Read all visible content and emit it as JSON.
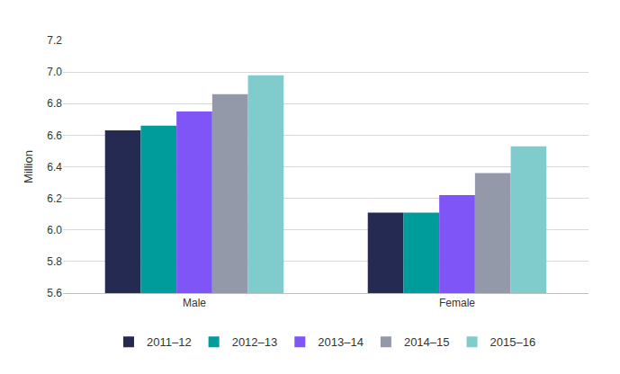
{
  "chart_data": {
    "type": "bar",
    "y_label": "Million",
    "categories": [
      "Male",
      "Female"
    ],
    "series": [
      {
        "name": "2011–12",
        "color": "#252a52",
        "values": [
          6.63,
          6.11
        ]
      },
      {
        "name": "2012–13",
        "color": "#009b9b",
        "values": [
          6.66,
          6.11
        ]
      },
      {
        "name": "2013–14",
        "color": "#8055f7",
        "values": [
          6.75,
          6.22
        ]
      },
      {
        "name": "2014–15",
        "color": "#9499aa",
        "values": [
          6.86,
          6.36
        ]
      },
      {
        "name": "2015–16",
        "color": "#80cccc",
        "values": [
          6.98,
          6.53
        ]
      }
    ],
    "ylim": [
      5.6,
      7.2
    ],
    "yticks": [
      5.6,
      5.8,
      {
        "value": 6,
        "label": "6.0"
      },
      6.2,
      6.4,
      6.6,
      6.8,
      {
        "value": 7,
        "label": "7.0"
      },
      7.2
    ],
    "grid": true,
    "legend": "bottom"
  }
}
